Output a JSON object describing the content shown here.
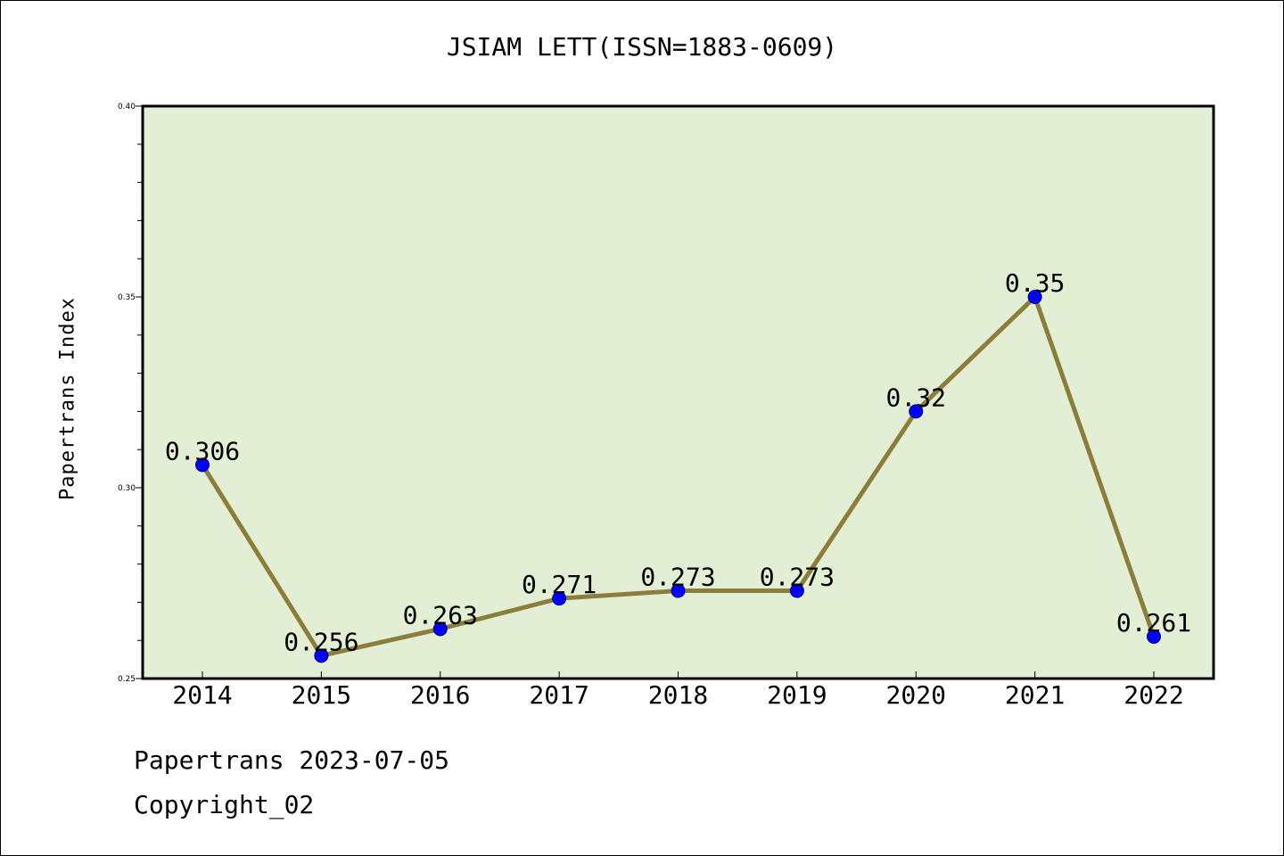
{
  "chart_data": {
    "type": "line",
    "title": "JSIAM LETT(ISSN=1883-0609)",
    "xlabel": "",
    "ylabel": "Papertrans Index",
    "categories": [
      "2014",
      "2015",
      "2016",
      "2017",
      "2018",
      "2019",
      "2020",
      "2021",
      "2022"
    ],
    "values": [
      0.306,
      0.256,
      0.263,
      0.271,
      0.273,
      0.273,
      0.32,
      0.35,
      0.261
    ],
    "data_labels": [
      "0.306",
      "0.256",
      "0.263",
      "0.271",
      "0.273",
      "0.273",
      "0.32",
      "0.35",
      "0.261"
    ],
    "ylim": [
      0.25,
      0.4
    ],
    "yticks": [
      "0.25",
      "0.30",
      "0.35",
      "0.40"
    ],
    "grid": false,
    "colors": {
      "line": "#8b7d3a",
      "marker": "#0000ff",
      "plot_background": "#e2efd5"
    }
  },
  "footer": {
    "line1": "Papertrans 2023-07-05",
    "line2": "Copyright_02"
  }
}
